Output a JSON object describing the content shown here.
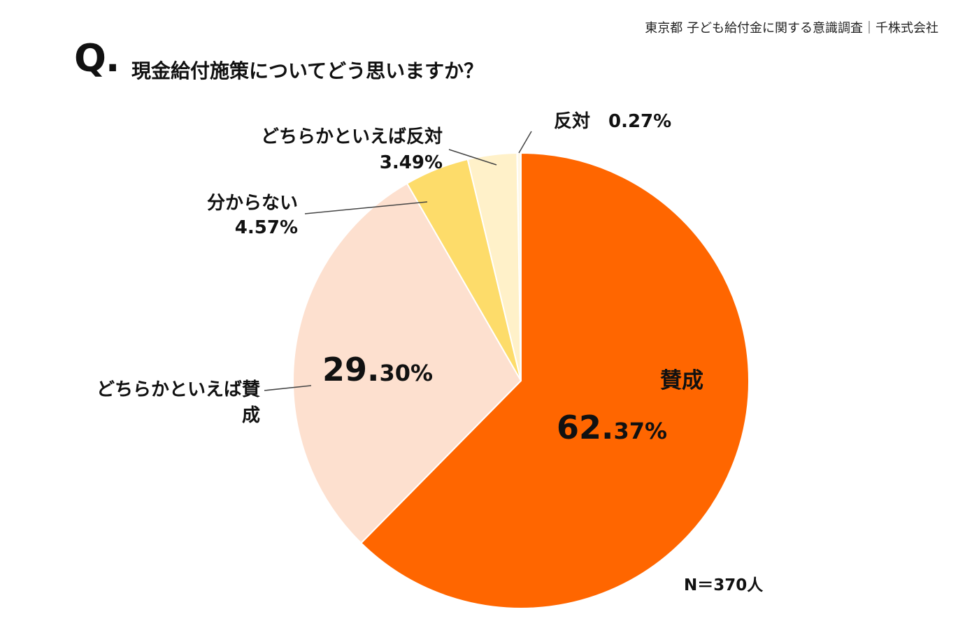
{
  "header": {
    "source": "東京都 子ども給付金に関する意識調査｜千株式会社",
    "q_mark": "Q.",
    "question": "現金給付施策についてどう思いますか？"
  },
  "chart_data": {
    "type": "pie",
    "title": "現金給付施策についてどう思いますか？",
    "sample_size_label": "N＝370人",
    "start_angle_deg": 0,
    "direction": "clockwise",
    "slices": [
      {
        "label": "賛成",
        "label_lines": [
          "賛成"
        ],
        "value": 62.37,
        "value_int": "62.",
        "value_dec": "37%",
        "color": "#FF6600"
      },
      {
        "label": "どちらかといえば賛成",
        "label_lines": [
          "どちらかといえば賛",
          "成"
        ],
        "value": 29.3,
        "value_int": "29.",
        "value_dec": "30%",
        "color": "#FDE0CF"
      },
      {
        "label": "分からない",
        "label_lines": [
          "分からない",
          "4.57%"
        ],
        "value": 4.57,
        "color": "#FDDC6A"
      },
      {
        "label": "どちらかといえば反対",
        "label_lines": [
          "どちらかといえば反対",
          "3.49%"
        ],
        "value": 3.49,
        "color": "#FFF1C9"
      },
      {
        "label": "反対",
        "label_lines": [
          "反対　0.27%"
        ],
        "value": 0.27,
        "color": "#FFF8E6"
      }
    ]
  }
}
